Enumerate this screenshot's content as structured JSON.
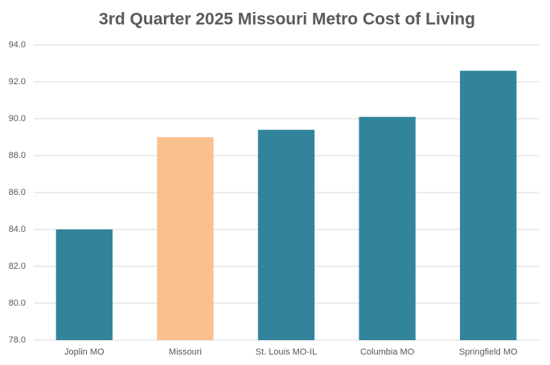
{
  "chart_data": {
    "type": "bar",
    "title": "3rd Quarter 2025 Missouri Metro Cost of Living",
    "categories": [
      "Joplin MO",
      "Missouri",
      "St. Louis MO-IL",
      "Columbia MO",
      "Springfield MO"
    ],
    "values": [
      84.0,
      89.0,
      89.4,
      90.1,
      92.6
    ],
    "colors": [
      "#31849b",
      "#fac090",
      "#31849b",
      "#31849b",
      "#31849b"
    ],
    "ylim": [
      78,
      94
    ],
    "yticks": [
      {
        "value": 78,
        "label": "78.0"
      },
      {
        "value": 80,
        "label": "80.0"
      },
      {
        "value": 82,
        "label": "82.0"
      },
      {
        "value": 84,
        "label": "84.0"
      },
      {
        "value": 86,
        "label": "86.0"
      },
      {
        "value": 88,
        "label": "88.0"
      },
      {
        "value": 90,
        "label": "90.0"
      },
      {
        "value": 92,
        "label": "92.0"
      },
      {
        "value": 94,
        "label": "94.0"
      }
    ],
    "grid": true
  }
}
